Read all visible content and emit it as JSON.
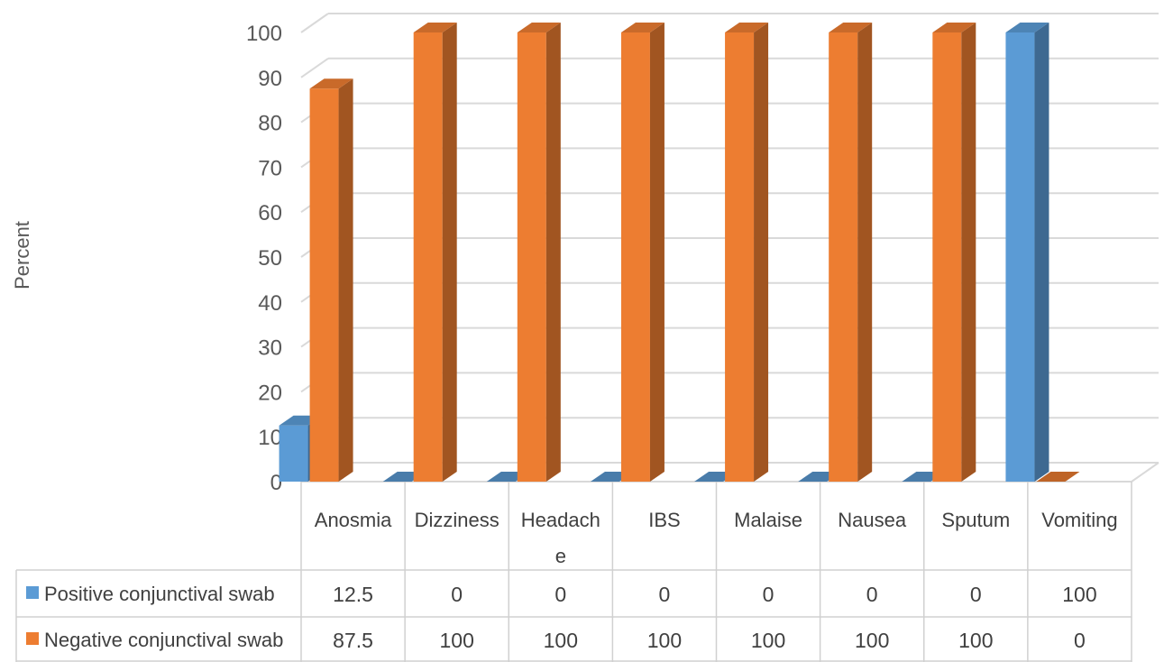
{
  "chart_data": {
    "type": "bar",
    "style": "3d-clustered-column-with-data-table",
    "ylabel": "Percent",
    "ylim": [
      0,
      100
    ],
    "y_ticks": [
      0,
      10,
      20,
      30,
      40,
      50,
      60,
      70,
      80,
      90,
      100
    ],
    "grid": true,
    "categories": [
      [
        "Anosmia"
      ],
      [
        "Dizziness"
      ],
      [
        "Headach",
        "e"
      ],
      [
        "IBS"
      ],
      [
        "Malaise"
      ],
      [
        "Nausea"
      ],
      [
        "Sputum"
      ],
      [
        "Vomiting"
      ]
    ],
    "series": [
      {
        "name": "Positive conjunctival swab",
        "color": "#5B9BD5",
        "values": [
          12.5,
          0,
          0,
          0,
          0,
          0,
          0,
          100
        ]
      },
      {
        "name": "Negative  conjunctival swab",
        "color": "#ED7D31",
        "values": [
          87.5,
          100,
          100,
          100,
          100,
          100,
          100,
          0
        ]
      }
    ]
  }
}
